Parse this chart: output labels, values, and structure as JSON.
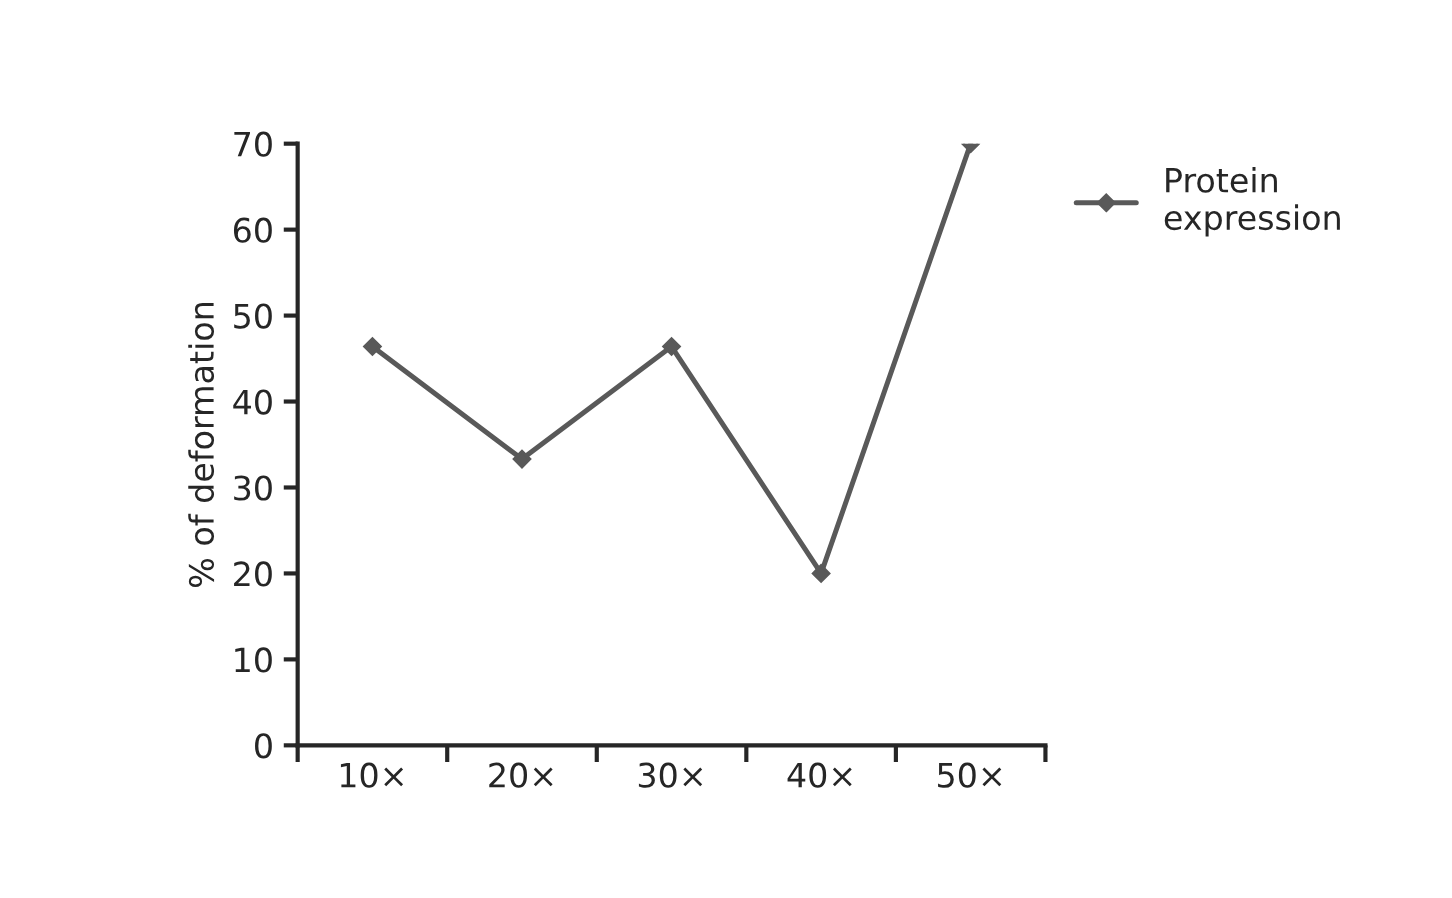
{
  "chart_data": {
    "type": "line",
    "ylabel": "% of deformation",
    "categories": [
      "10×",
      "20×",
      "30×",
      "40×",
      "50×"
    ],
    "series": [
      {
        "name": "Protein expression",
        "color": "#595959",
        "values": [
          46.4,
          33.3,
          46.4,
          20,
          70
        ]
      }
    ],
    "ylim": [
      0,
      70
    ],
    "yticks": [
      0,
      10,
      20,
      30,
      40,
      50,
      60,
      70
    ],
    "marker": "diamond",
    "line_style": "solid",
    "legend": "top right",
    "grid": false
  }
}
